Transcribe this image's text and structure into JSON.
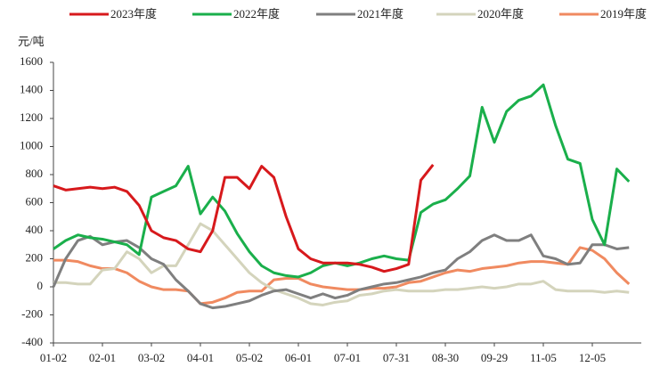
{
  "chart_data": {
    "type": "line",
    "y_label": "元/吨",
    "categories": [
      "01-02",
      null,
      null,
      null,
      "02-01",
      null,
      null,
      null,
      "03-02",
      null,
      null,
      null,
      "04-01",
      null,
      null,
      null,
      "05-02",
      null,
      null,
      null,
      "06-01",
      null,
      null,
      null,
      "07-01",
      null,
      null,
      null,
      "07-31",
      null,
      null,
      null,
      "08-30",
      null,
      null,
      null,
      "09-29",
      null,
      null,
      null,
      "11-05",
      null,
      null,
      null,
      "12-05",
      null,
      null,
      null
    ],
    "series": [
      {
        "name": "2023年度",
        "color": "#d7191c",
        "values": [
          720,
          690,
          700,
          710,
          700,
          710,
          680,
          580,
          400,
          350,
          330,
          270,
          250,
          400,
          780,
          780,
          700,
          860,
          780,
          500,
          270,
          200,
          170,
          170,
          170,
          160,
          140,
          110,
          130,
          160,
          760,
          870,
          null,
          null,
          null,
          null,
          null,
          null,
          null,
          null,
          null,
          null,
          null,
          null,
          null,
          null,
          null,
          null
        ]
      },
      {
        "name": "2022年度",
        "color": "#1aaf4b",
        "values": [
          270,
          330,
          370,
          350,
          340,
          320,
          300,
          230,
          640,
          680,
          720,
          860,
          520,
          640,
          540,
          380,
          250,
          150,
          100,
          80,
          70,
          100,
          150,
          170,
          150,
          170,
          200,
          220,
          200,
          190,
          530,
          590,
          620,
          700,
          790,
          1280,
          1030,
          1250,
          1330,
          1360,
          1440,
          1150,
          910,
          880,
          480,
          300,
          840,
          750
        ]
      },
      {
        "name": "2021年度",
        "color": "#7f7f7f",
        "values": [
          0,
          200,
          330,
          360,
          300,
          320,
          330,
          280,
          200,
          160,
          50,
          -30,
          -120,
          -150,
          -140,
          -120,
          -100,
          -60,
          -30,
          -20,
          -50,
          -80,
          -50,
          -80,
          -60,
          -20,
          0,
          20,
          30,
          50,
          70,
          100,
          120,
          200,
          250,
          330,
          370,
          330,
          330,
          370,
          220,
          200,
          160,
          170,
          300,
          300,
          270,
          280
        ]
      },
      {
        "name": "2020年度",
        "color": "#d4d4bc",
        "values": [
          30,
          30,
          20,
          20,
          120,
          130,
          250,
          200,
          100,
          150,
          150,
          300,
          450,
          400,
          300,
          200,
          100,
          30,
          -20,
          -50,
          -80,
          -120,
          -130,
          -110,
          -100,
          -60,
          -50,
          -30,
          -20,
          -30,
          -30,
          -30,
          -20,
          -20,
          -10,
          0,
          -10,
          0,
          20,
          20,
          40,
          -20,
          -30,
          -30,
          -30,
          -40,
          -30,
          -40
        ]
      },
      {
        "name": "2019年度",
        "color": "#f08a60",
        "values": [
          190,
          190,
          180,
          150,
          130,
          130,
          100,
          40,
          0,
          -20,
          -20,
          -30,
          -120,
          -110,
          -80,
          -40,
          -30,
          -30,
          50,
          60,
          60,
          20,
          0,
          -10,
          -20,
          -20,
          -10,
          -10,
          0,
          30,
          40,
          70,
          100,
          120,
          110,
          130,
          140,
          150,
          170,
          180,
          180,
          170,
          160,
          280,
          260,
          200,
          100,
          20
        ]
      }
    ],
    "ylim": [
      -400,
      1600
    ],
    "yticks": [
      -400,
      -200,
      0,
      200,
      400,
      600,
      800,
      1000,
      1200,
      1400,
      1600
    ],
    "legend": "top"
  }
}
